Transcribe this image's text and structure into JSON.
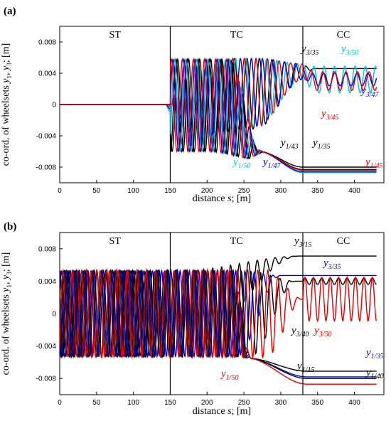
{
  "chart_data": [
    {
      "panel": "(a)",
      "type": "line",
      "xlabel_pre": "distance ",
      "xlabel_var": "s",
      "xlabel_post": "; [m]",
      "ylabel": "co-ord. of wheelsets y1, y3; [m]",
      "ylabel_parts": [
        "co-ord. of wheelsets ",
        "y",
        "1",
        ", ",
        "y",
        "3",
        "; [m]"
      ],
      "xlim": [
        0,
        440
      ],
      "ylim": [
        -0.01,
        0.01
      ],
      "xticks": [
        0,
        50,
        100,
        150,
        200,
        250,
        300,
        350,
        400
      ],
      "yticks": [
        -0.008,
        -0.004,
        0,
        0.004,
        0.008
      ],
      "ytick_labels": [
        "-0.008",
        "-0.004",
        "0",
        "0.004",
        "0.008"
      ],
      "grid": false,
      "regions": [
        {
          "label": "ST",
          "x_label": 75
        },
        {
          "label": "TC",
          "x_label": 240
        },
        {
          "label": "CC",
          "x_label": 385
        }
      ],
      "boundaries": [
        150,
        330
      ],
      "series": [
        {
          "name": "y3/35",
          "color": "#000000",
          "side": "upper",
          "onset": 148,
          "amp_end": 0.0058,
          "freq": 0.37,
          "phase": 0.0,
          "final": 0.0046,
          "osc_cc": 0.0,
          "final_x": 430
        },
        {
          "name": "y3/50",
          "color": "#00c0e8",
          "side": "upper",
          "onset": 140,
          "amp_end": 0.0055,
          "freq": 0.45,
          "phase": 1.1,
          "final": 0.0032,
          "osc_cc": 0.0017,
          "final_x": 430
        },
        {
          "name": "y3/47",
          "color": "#0000e0",
          "side": "upper",
          "onset": 142,
          "amp_end": 0.0055,
          "freq": 0.42,
          "phase": 2.2,
          "final": 0.0032,
          "osc_cc": 0.0008,
          "final_x": 430
        },
        {
          "name": "y3/45",
          "color": "#e00000",
          "side": "upper",
          "onset": 145,
          "amp_end": 0.0056,
          "freq": 0.4,
          "phase": 3.3,
          "final": 0.003,
          "osc_cc": 0.0012,
          "final_x": 430
        },
        {
          "name": "y1/43",
          "color": "#000000",
          "side": "lower",
          "final": -0.0083,
          "final_x": 430
        },
        {
          "name": "y1/35",
          "color": "#000000",
          "side": "lower",
          "final": -0.008,
          "final_x": 430
        },
        {
          "name": "y1/50",
          "color": "#00c0e8",
          "side": "lower",
          "final": -0.0087,
          "final_x": 430
        },
        {
          "name": "y1/47",
          "color": "#0000e0",
          "side": "lower",
          "final": -0.0086,
          "final_x": 430
        },
        {
          "name": "y1/45",
          "color": "#e00000",
          "side": "lower",
          "final": -0.0084,
          "final_x": 430
        }
      ],
      "labels": [
        {
          "main": "y",
          "sub": "3/35",
          "color": "#000000"
        },
        {
          "main": "y",
          "sub": "3/50",
          "color": "#00c0e8"
        },
        {
          "main": "y",
          "sub": "3/47",
          "color": "#0000e0"
        },
        {
          "main": "y",
          "sub": "3/45",
          "color": "#e00000"
        },
        {
          "main": "y",
          "sub": "1/43",
          "color": "#000000"
        },
        {
          "main": "y",
          "sub": "1/35",
          "color": "#000000"
        },
        {
          "main": "y",
          "sub": "1/50",
          "color": "#00c0e8"
        },
        {
          "main": "y",
          "sub": "1/47",
          "color": "#0000e0"
        },
        {
          "main": "y",
          "sub": "1/45",
          "color": "#e00000"
        }
      ]
    },
    {
      "panel": "(b)",
      "type": "line",
      "xlabel_pre": "distance ",
      "xlabel_var": "s",
      "xlabel_post": "; [m]",
      "ylabel": "co-ord. of wheelsets y1, y3; [m]",
      "ylabel_parts": [
        "co-ord. of wheelsets ",
        "y",
        "1",
        ", ",
        "y",
        "3",
        "; [m]"
      ],
      "xlim": [
        0,
        440
      ],
      "ylim": [
        -0.01,
        0.01
      ],
      "xticks": [
        0,
        50,
        100,
        150,
        200,
        250,
        300,
        350,
        400
      ],
      "yticks": [
        -0.008,
        -0.004,
        0,
        0.004,
        0.008
      ],
      "ytick_labels": [
        "-0.008",
        "-0.004",
        "0",
        "0.004",
        "0.008"
      ],
      "grid": false,
      "regions": [
        {
          "label": "ST",
          "x_label": 75
        },
        {
          "label": "TC",
          "x_label": 240
        },
        {
          "label": "CC",
          "x_label": 385
        }
      ],
      "boundaries": [
        150,
        330
      ],
      "series": [
        {
          "name": "y3/15",
          "color": "#000000",
          "amp": 0.0053,
          "freq": 0.52,
          "phase": 0.4,
          "trans_start": 165,
          "trans_end": 325,
          "final": 0.0071,
          "osc_cc": 0.0,
          "final_x": 430
        },
        {
          "name": "y3/35",
          "color": "#0000e0",
          "amp": 0.0053,
          "freq": 0.5,
          "phase": 1.5,
          "trans_start": 240,
          "trans_end": 300,
          "final": 0.0047,
          "osc_cc": 0.0,
          "final_x": 430
        },
        {
          "name": "y3/40",
          "color": "#000000",
          "amp": 0.0052,
          "freq": 0.48,
          "phase": 2.6,
          "trans_start": 260,
          "trans_end": 320,
          "final": 0.004,
          "osc_cc": 0.0004,
          "final_x": 430
        },
        {
          "name": "y3/50",
          "color": "#e00000",
          "amp": 0.0054,
          "freq": 0.46,
          "phase": 3.6,
          "trans_start": 280,
          "trans_end": 330,
          "final": 0.0018,
          "osc_cc": 0.0027,
          "final_x": 430
        },
        {
          "name": "y1/15",
          "color": "#000000",
          "final": -0.0071,
          "final_x": 430
        },
        {
          "name": "y1/35",
          "color": "#0000e0",
          "final": -0.0078,
          "final_x": 430
        },
        {
          "name": "y1/40",
          "color": "#000000",
          "final": -0.008,
          "final_x": 430
        },
        {
          "name": "y1/50",
          "color": "#e00000",
          "final": -0.0087,
          "final_x": 430
        }
      ],
      "labels": [
        {
          "main": "y",
          "sub": "3/15",
          "color": "#000000"
        },
        {
          "main": "y",
          "sub": "3/35",
          "color": "#0000e0"
        },
        {
          "main": "y",
          "sub": "3/40",
          "color": "#000000"
        },
        {
          "main": "y",
          "sub": "3/50",
          "color": "#e00000"
        },
        {
          "main": "y",
          "sub": "1/15",
          "color": "#000000"
        },
        {
          "main": "y",
          "sub": "1/35",
          "color": "#0000e0"
        },
        {
          "main": "y",
          "sub": "1/40",
          "color": "#000000"
        },
        {
          "main": "y",
          "sub": "1/50",
          "color": "#e00000"
        }
      ]
    }
  ]
}
